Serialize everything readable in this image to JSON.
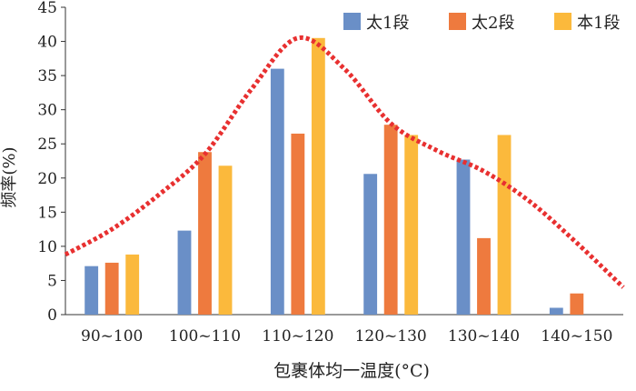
{
  "chart_data": {
    "type": "bar",
    "title": "",
    "xlabel": "包裹体均一温度(°C)",
    "ylabel": "频率(%)",
    "ylim": [
      0,
      45
    ],
    "yticks": [
      0,
      5,
      10,
      15,
      20,
      25,
      30,
      35,
      40,
      45
    ],
    "grid": false,
    "legend_position": "top-right",
    "categories": [
      "90~100",
      "100~110",
      "110~120",
      "120~130",
      "130~140",
      "140~150"
    ],
    "series": [
      {
        "name": "太1段",
        "color": "#6a8fc7",
        "values": [
          7.1,
          12.3,
          36.0,
          20.6,
          22.7,
          1.0
        ]
      },
      {
        "name": "太2段",
        "color": "#ee7a3e",
        "values": [
          7.6,
          23.8,
          26.5,
          27.8,
          11.2,
          3.1
        ]
      },
      {
        "name": "本1段",
        "color": "#fbb93c",
        "values": [
          8.8,
          21.8,
          40.5,
          26.3,
          26.3,
          null
        ]
      }
    ],
    "trend_curve": {
      "style": "dotted",
      "color": "#e83030",
      "x": [
        0,
        0.5,
        1,
        1.5,
        2,
        2.5,
        3,
        3.5,
        4,
        4.5,
        5,
        5.5,
        6
      ],
      "y": [
        8.8,
        12.5,
        17.5,
        23.5,
        33,
        40.5,
        36,
        28,
        24,
        21,
        16.5,
        10.5,
        4
      ]
    }
  }
}
